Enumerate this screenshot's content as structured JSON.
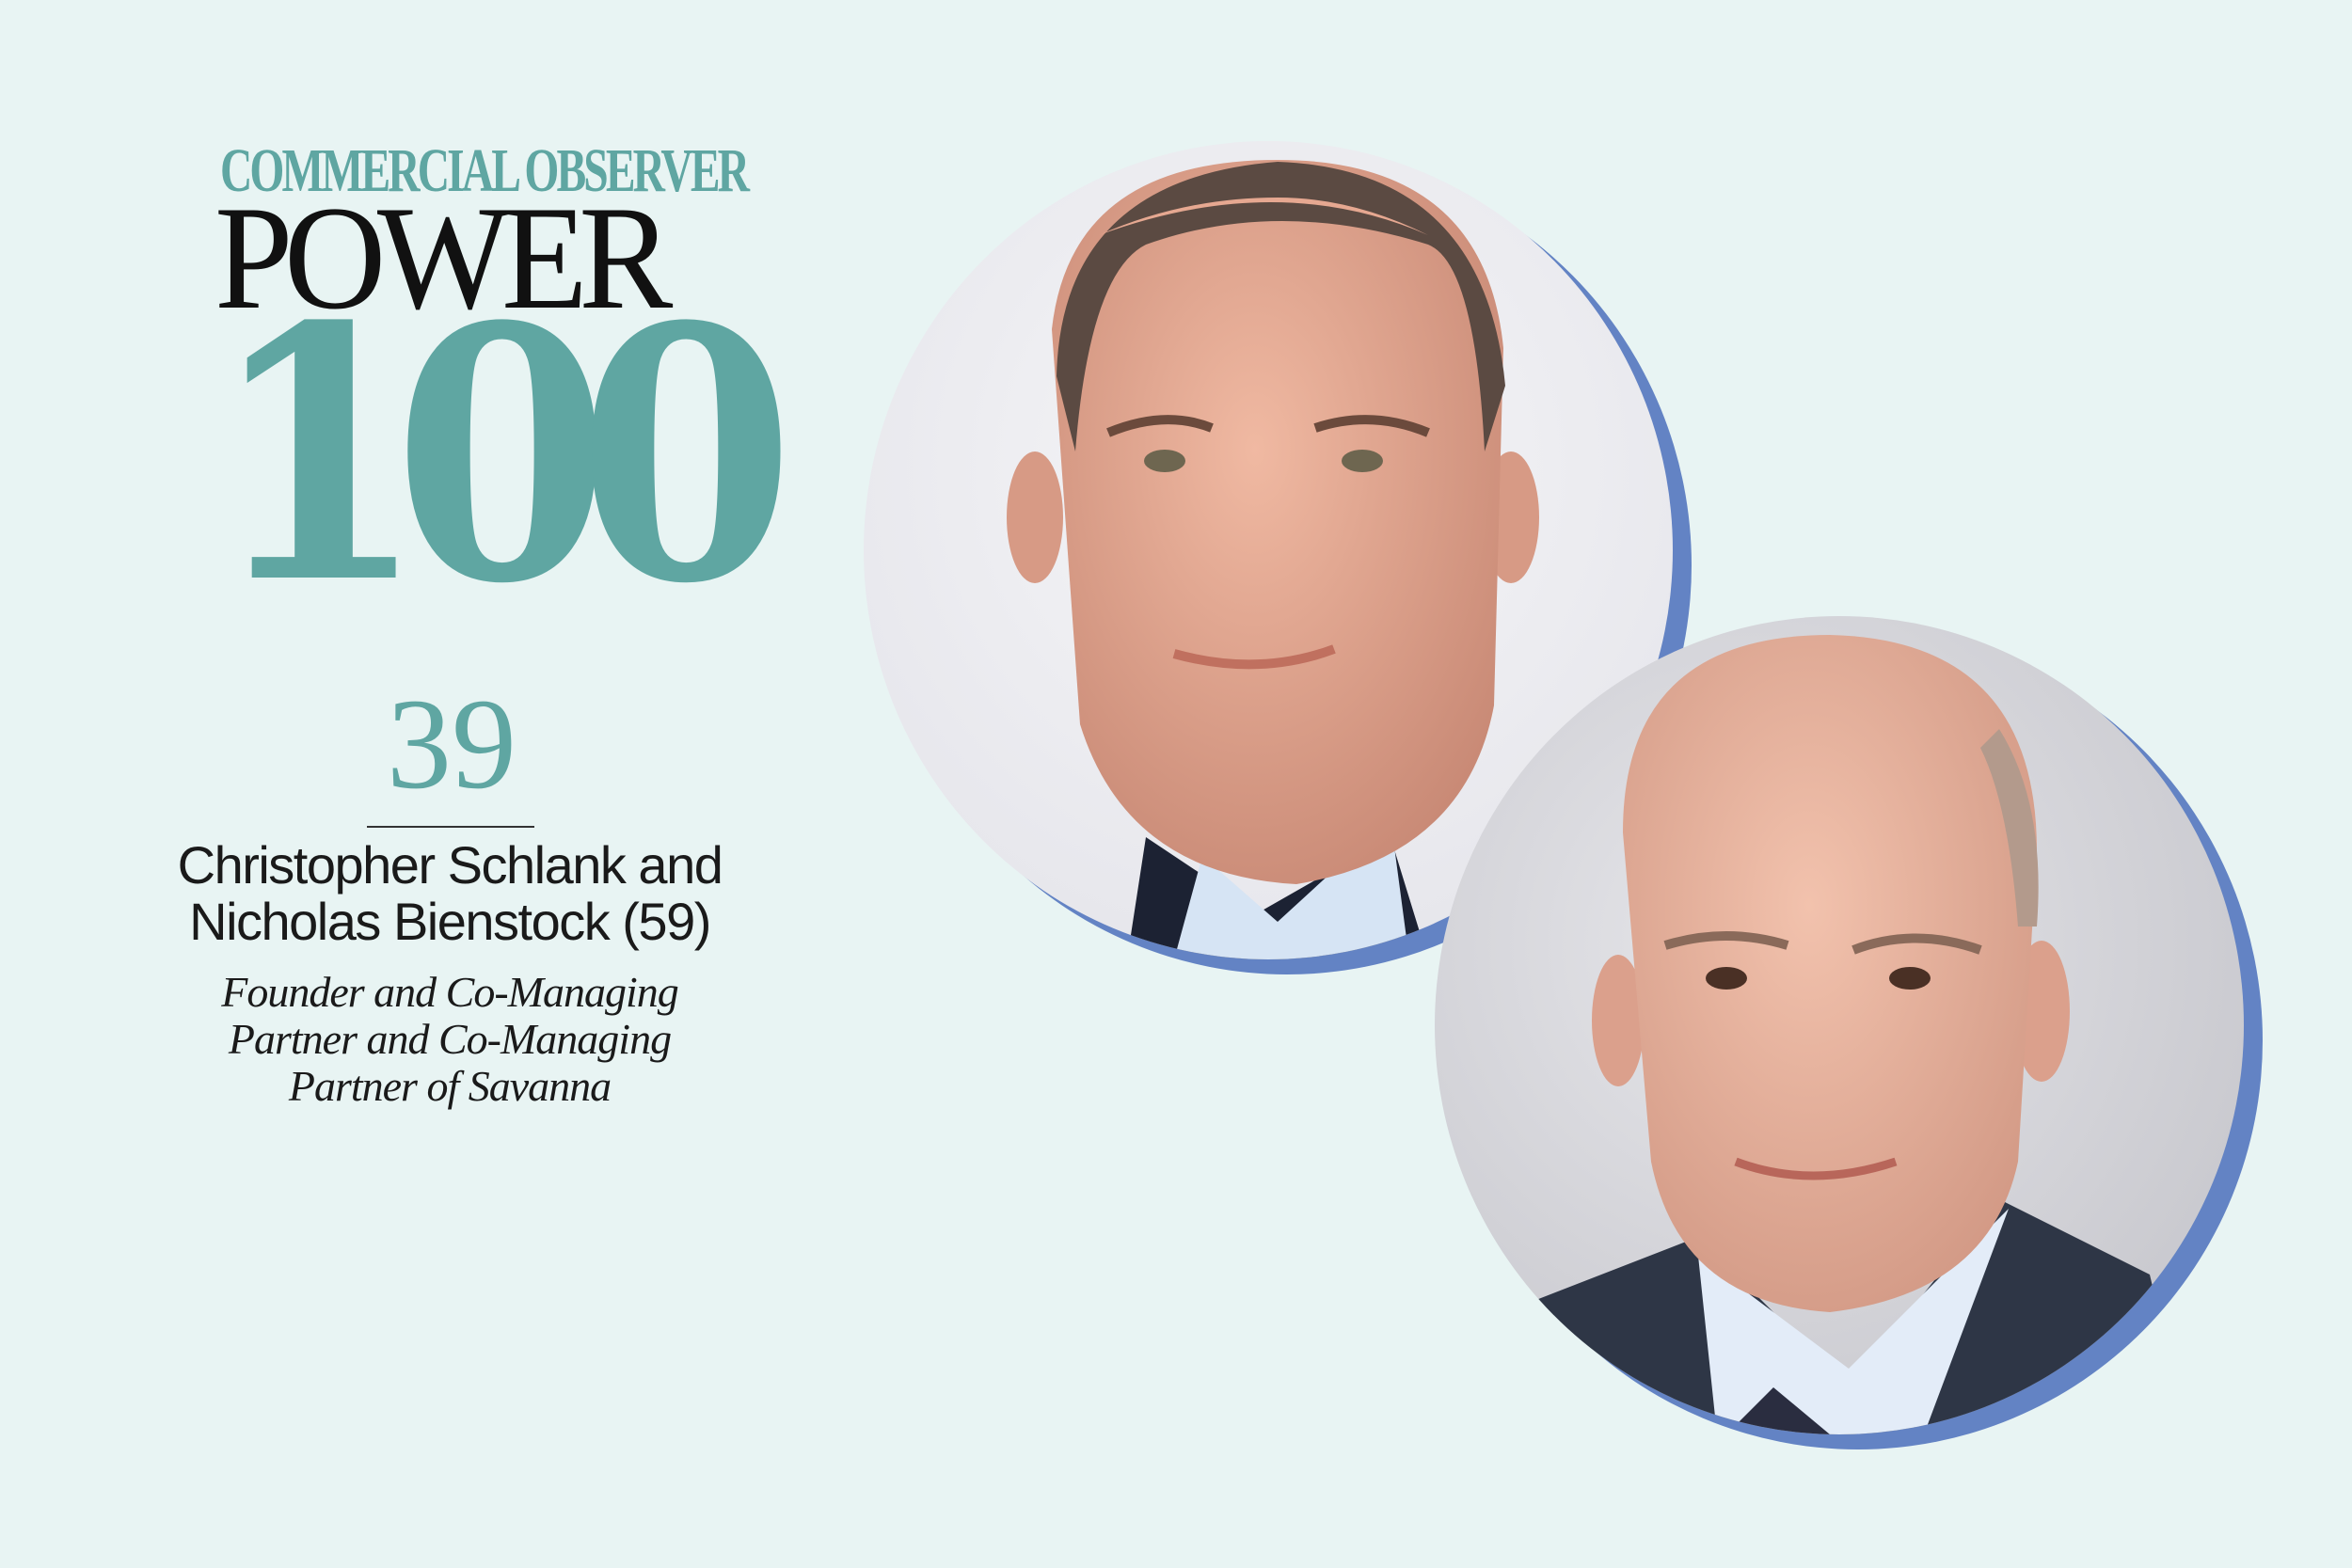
{
  "logo": {
    "publication": "COMMERCIAL OBSERVER",
    "power": "POWER",
    "number": "100"
  },
  "entry": {
    "rank": "39",
    "names": [
      "Christopher Schlank and",
      "Nicholas Bienstock (59)"
    ],
    "role": [
      "Founder and Co-Managing",
      "Partner and Co-Managing",
      "Partner of Savanna"
    ]
  },
  "colors": {
    "background": "#e8f4f3",
    "teal_accent": "#5fa6a2",
    "photo_ring": "#6383c4"
  },
  "photos": [
    {
      "subject": "portrait-christopher-schlank"
    },
    {
      "subject": "portrait-nicholas-bienstock"
    }
  ]
}
